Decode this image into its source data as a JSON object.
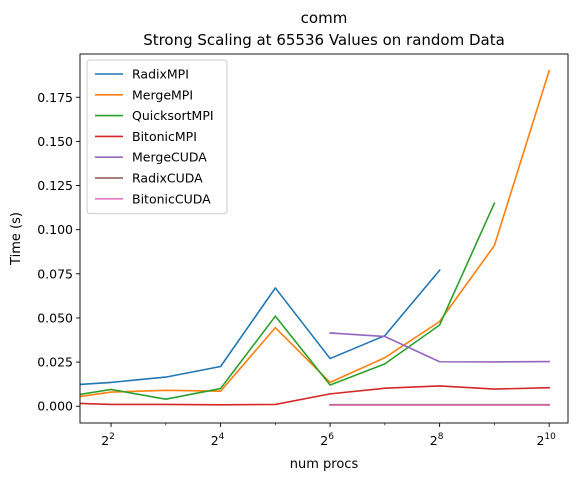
{
  "chart_data": {
    "type": "line",
    "title": "comm",
    "subtitle": "Strong Scaling at 65536 Values on random Data",
    "xlabel": "num procs",
    "ylabel": "Time (s)",
    "xscale": "log2",
    "xlim": [
      2.7,
      1300
    ],
    "ylim": [
      -0.0095,
      0.1995
    ],
    "x_ticks": [
      {
        "value": 4,
        "base": "2",
        "exp": "2"
      },
      {
        "value": 16,
        "base": "2",
        "exp": "4"
      },
      {
        "value": 64,
        "base": "2",
        "exp": "6"
      },
      {
        "value": 256,
        "base": "2",
        "exp": "8"
      },
      {
        "value": 1024,
        "base": "2",
        "exp": "10"
      }
    ],
    "y_ticks": [
      {
        "value": 0.0,
        "label": "0.000"
      },
      {
        "value": 0.025,
        "label": "0.025"
      },
      {
        "value": 0.05,
        "label": "0.050"
      },
      {
        "value": 0.075,
        "label": "0.075"
      },
      {
        "value": 0.1,
        "label": "0.100"
      },
      {
        "value": 0.125,
        "label": "0.125"
      },
      {
        "value": 0.15,
        "label": "0.150"
      },
      {
        "value": 0.175,
        "label": "0.175"
      }
    ],
    "grid": false,
    "legend_position": "upper-left",
    "series": [
      {
        "name": "RadixMPI",
        "color": "#1f77b4",
        "x": [
          2,
          4,
          8,
          16,
          32,
          64,
          128,
          256
        ],
        "y": [
          0.0115,
          0.0135,
          0.0165,
          0.0225,
          0.067,
          0.027,
          0.04,
          0.077
        ]
      },
      {
        "name": "MergeMPI",
        "color": "#ff7f0e",
        "x": [
          2,
          4,
          8,
          16,
          32,
          64,
          128,
          256,
          512,
          1024
        ],
        "y": [
          0.0035,
          0.008,
          0.009,
          0.0085,
          0.0445,
          0.0135,
          0.0275,
          0.048,
          0.091,
          0.19
        ]
      },
      {
        "name": "QuicksortMPI",
        "color": "#2ca02c",
        "x": [
          2,
          4,
          8,
          16,
          32,
          64,
          128,
          256,
          512
        ],
        "y": [
          0.0045,
          0.0095,
          0.004,
          0.01,
          0.051,
          0.012,
          0.024,
          0.046,
          0.115
        ]
      },
      {
        "name": "BitonicMPI",
        "color": "#d62728",
        "x": [
          2,
          4,
          8,
          16,
          32,
          64,
          128,
          256,
          512,
          1024
        ],
        "y": [
          0.002,
          0.001,
          0.001,
          0.0008,
          0.001,
          0.007,
          0.0102,
          0.0115,
          0.0097,
          0.0105
        ]
      },
      {
        "name": "MergeCUDA",
        "color": "#9467bd",
        "x": [
          64,
          128,
          256,
          512,
          1024
        ],
        "y": [
          0.0415,
          0.0395,
          0.0252,
          0.0251,
          0.0253
        ]
      },
      {
        "name": "RadixCUDA",
        "color": "#8c564b",
        "x": [
          64,
          128,
          256,
          512,
          1024
        ],
        "y": [
          0.0009,
          0.0009,
          0.0009,
          0.0009,
          0.0009
        ]
      },
      {
        "name": "BitonicCUDA",
        "color": "#e377c2",
        "x": [
          64,
          128,
          256,
          512,
          1024
        ],
        "y": [
          0.0006,
          0.0006,
          0.0006,
          0.0006,
          0.0006
        ]
      }
    ]
  }
}
